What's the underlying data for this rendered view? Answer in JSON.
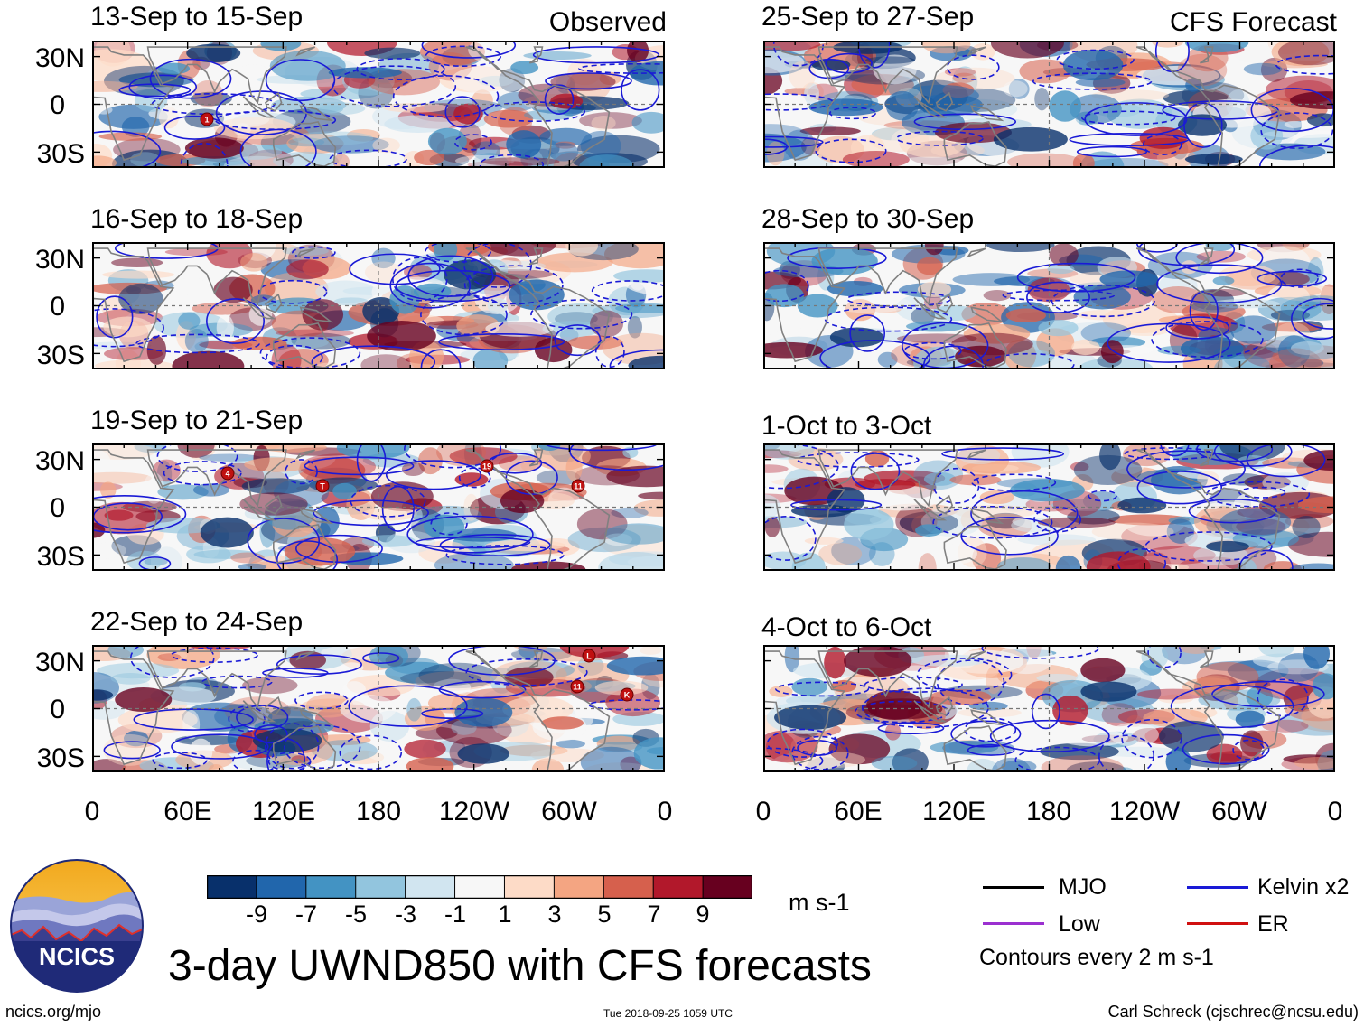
{
  "observed_label": "Observed",
  "forecast_label": "CFS Forecast",
  "observed_panels": [
    {
      "title": "13-Sep to 15-Sep"
    },
    {
      "title": "16-Sep to 18-Sep"
    },
    {
      "title": "19-Sep to 21-Sep"
    },
    {
      "title": "22-Sep to 24-Sep"
    }
  ],
  "forecast_panels": [
    {
      "title": "25-Sep to 27-Sep"
    },
    {
      "title": "28-Sep to 30-Sep"
    },
    {
      "title": "1-Oct to 3-Oct"
    },
    {
      "title": "4-Oct to 6-Oct"
    }
  ],
  "lat_labels": [
    "30N",
    "0",
    "30S"
  ],
  "lon_labels": [
    "0",
    "60E",
    "120E",
    "180",
    "120W",
    "60W",
    "0"
  ],
  "colorbar": {
    "ticks": [
      "-9",
      "-7",
      "-5",
      "-3",
      "-1",
      "1",
      "3",
      "5",
      "7",
      "9"
    ],
    "colors": [
      "#08306b",
      "#2166ac",
      "#4393c3",
      "#92c5de",
      "#d1e5f0",
      "#f7f7f7",
      "#fddbc7",
      "#f4a582",
      "#d6604d",
      "#b2182b",
      "#67001f"
    ],
    "units": "m s-1"
  },
  "legend": {
    "mjo": {
      "label": "MJO",
      "color": "#000000"
    },
    "low": {
      "label": "Low",
      "color": "#9b30d0"
    },
    "kelvin": {
      "label": "Kelvin x2",
      "color": "#1a1ad6"
    },
    "er": {
      "label": "ER",
      "color": "#d01010"
    },
    "contours": "Contours every 2 m s-1"
  },
  "logo": {
    "text": "NCICS"
  },
  "main_title": "3-day UWND850 with CFS forecasts",
  "footer": {
    "url": "ncics.org/mjo",
    "timestamp": "Tue 2018-09-25 1059 UTC",
    "credit": "Carl Schreck (cjschrec@ncsu.edu)"
  },
  "storm_markers": [
    {
      "panel": 0,
      "label": "1"
    },
    {
      "panel": 2,
      "label": "4"
    },
    {
      "panel": 2,
      "label": "T"
    },
    {
      "panel": 2,
      "label": "19"
    },
    {
      "panel": 2,
      "label": "11"
    },
    {
      "panel": 3,
      "label": "L"
    },
    {
      "panel": 3,
      "label": "11"
    },
    {
      "panel": 3,
      "label": "K"
    }
  ]
}
